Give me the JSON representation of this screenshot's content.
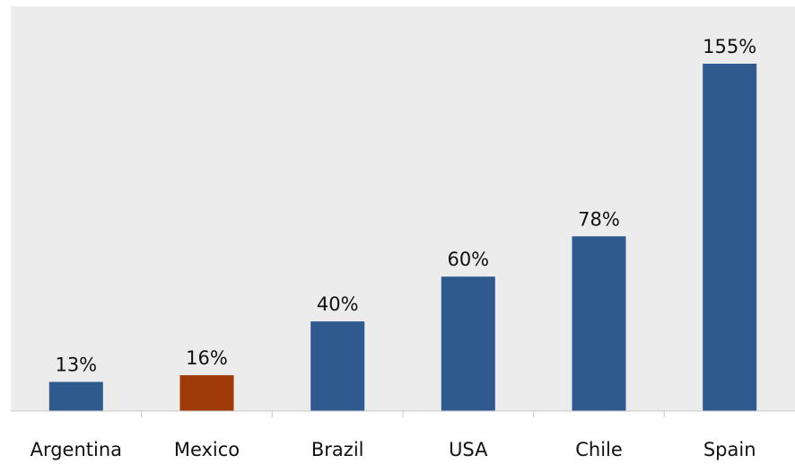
{
  "chart_data": {
    "type": "bar",
    "categories": [
      "Argentina",
      "Mexico",
      "Brazil",
      "USA",
      "Chile",
      "Spain"
    ],
    "values": [
      13,
      16,
      40,
      60,
      78,
      155
    ],
    "value_labels": [
      "13%",
      "16%",
      "40%",
      "60%",
      "78%",
      "155%"
    ],
    "colors": [
      "#2f5a8f",
      "#a03a08",
      "#2f5a8f",
      "#2f5a8f",
      "#2f5a8f",
      "#2f5a8f"
    ],
    "plot_background": "#ececec",
    "title": "",
    "xlabel": "",
    "ylabel": "",
    "ylim": [
      0,
      155
    ],
    "grid": false,
    "legend": "none"
  }
}
